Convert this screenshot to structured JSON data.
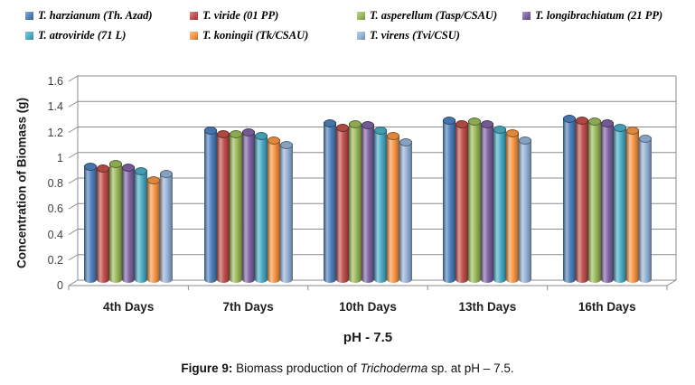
{
  "chart_data": {
    "type": "bar",
    "style": "3d-cylinder",
    "title": "",
    "xlabel": "pH - 7.5",
    "ylabel": "Concentration of Biomass (g)",
    "ylim": [
      0,
      1.6
    ],
    "ytick_labels": [
      "0",
      "0.2",
      "0.4",
      "0.6",
      "0.8",
      "1",
      "1.2",
      "1.4",
      "1.6"
    ],
    "grid": true,
    "legend_position": "top",
    "categories": [
      "4th Days",
      "7th Days",
      "10th Days",
      "13th Days",
      "16th Days"
    ],
    "series": [
      {
        "name": "T. harzianum (Th. Azad)",
        "color": "#4F81BD",
        "values": [
          0.93,
          1.21,
          1.27,
          1.29,
          1.3
        ]
      },
      {
        "name": "T. viride (01 PP)",
        "color": "#C0504D",
        "values": [
          0.91,
          1.18,
          1.23,
          1.26,
          1.29
        ]
      },
      {
        "name": "T. asperellum (Tasp/CSAU)",
        "color": "#9BBB59",
        "values": [
          0.95,
          1.18,
          1.26,
          1.28,
          1.28
        ]
      },
      {
        "name": "T. longibrachiatum (21 PP)",
        "color": "#8064A2",
        "values": [
          0.92,
          1.2,
          1.25,
          1.26,
          1.27
        ]
      },
      {
        "name": "T. atroviride (71 L)",
        "color": "#4BACC6",
        "values": [
          0.89,
          1.17,
          1.21,
          1.22,
          1.23
        ]
      },
      {
        "name": "T. koningii (Tk/CSAU)",
        "color": "#F79646",
        "values": [
          0.82,
          1.13,
          1.17,
          1.19,
          1.21
        ]
      },
      {
        "name": "T. virens (Tvi/CSU)",
        "color": "#95B3D7",
        "values": [
          0.87,
          1.1,
          1.12,
          1.13,
          1.15
        ]
      }
    ]
  },
  "caption": {
    "prefix": "Figure 9:",
    "before_italic": " Biomass production of ",
    "italic": "Trichoderma",
    "suffix": " sp. at pH – 7.5."
  },
  "colors": {
    "gridline": "#8C8C8C",
    "axis_line": "#8C8C8C",
    "tick_text": "#3F3F3F",
    "background": "#FFFFFF"
  }
}
